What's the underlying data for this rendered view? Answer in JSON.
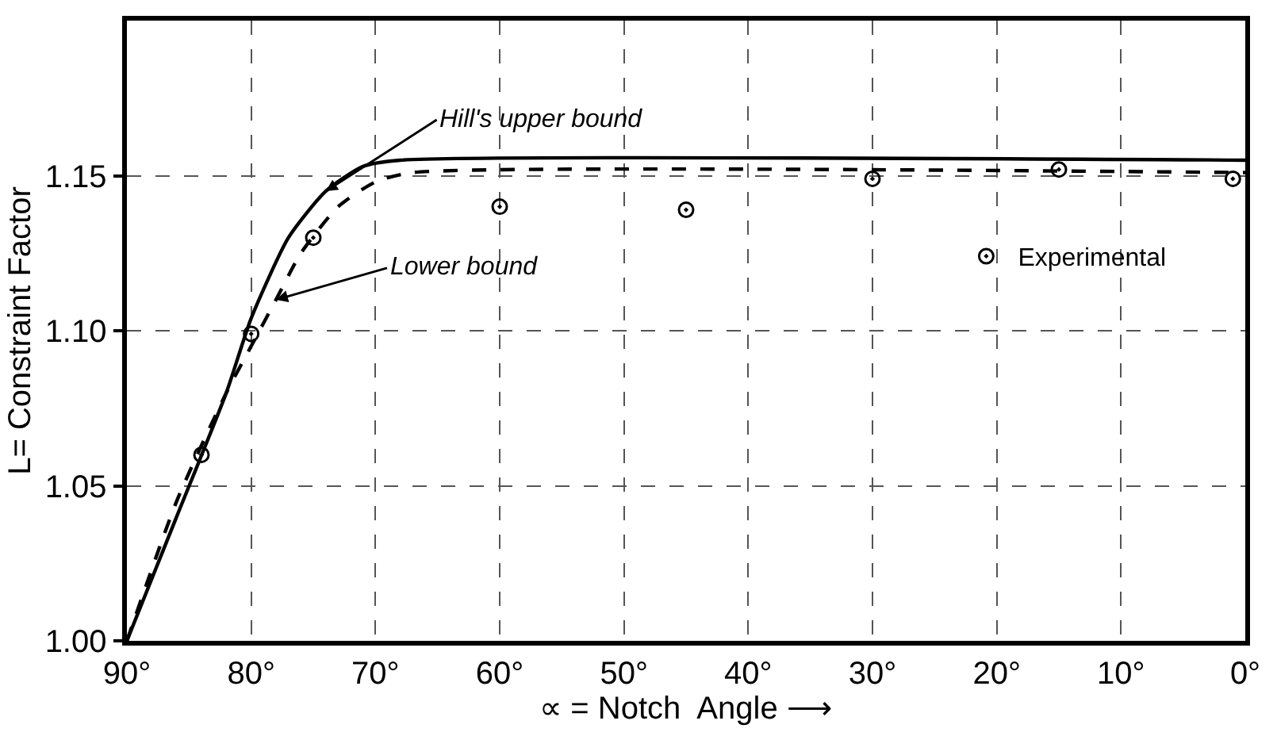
{
  "chart_data": {
    "type": "line",
    "xlabel": "∝ = Notch  Angle ⟶",
    "ylabel": "L= Constraint Factor",
    "xlim": [
      90,
      0
    ],
    "ylim": [
      1.0,
      1.2
    ],
    "xticks": [
      {
        "value": 90,
        "label": "90°"
      },
      {
        "value": 80,
        "label": "80°"
      },
      {
        "value": 70,
        "label": "70°"
      },
      {
        "value": 60,
        "label": "60°"
      },
      {
        "value": 50,
        "label": "50°"
      },
      {
        "value": 40,
        "label": "40°"
      },
      {
        "value": 30,
        "label": "30°"
      },
      {
        "value": 20,
        "label": "20°"
      },
      {
        "value": 10,
        "label": "10°"
      },
      {
        "value": 0,
        "label": "0°"
      }
    ],
    "yticks": [
      {
        "value": 1.0,
        "label": "1.00"
      },
      {
        "value": 1.05,
        "label": "1.05"
      },
      {
        "value": 1.1,
        "label": "1.10"
      },
      {
        "value": 1.15,
        "label": "1.15"
      }
    ],
    "grid": true,
    "legend": "right",
    "series": [
      {
        "color": "#000000",
        "line_style": "solid",
        "marker": "none",
        "x": [
          90,
          86,
          82,
          80,
          77,
          74,
          71,
          68,
          0
        ],
        "values": [
          1.0,
          1.04,
          1.08,
          1.104,
          1.13,
          1.145,
          1.153,
          1.155,
          1.155
        ]
      },
      {
        "color": "#000000",
        "line_style": "dashed",
        "marker": "none",
        "x": [
          90,
          86,
          82,
          80,
          78,
          76,
          73,
          70,
          67,
          0
        ],
        "values": [
          1.0,
          1.045,
          1.08,
          1.095,
          1.11,
          1.125,
          1.14,
          1.148,
          1.151,
          1.151
        ]
      },
      {
        "type": "scatter",
        "name": "Experimental",
        "color": "#000000",
        "marker": "circle",
        "x": [
          84,
          80,
          75,
          60,
          45,
          30,
          15,
          1
        ],
        "values": [
          1.06,
          1.099,
          1.13,
          1.14,
          1.139,
          1.149,
          1.152,
          1.149
        ]
      }
    ],
    "annotations": [
      {
        "text": "Hill's upper bound",
        "x": 74,
        "y": 1.145
      },
      {
        "text": "Lower bound",
        "x": 78,
        "y": 1.11
      }
    ]
  }
}
